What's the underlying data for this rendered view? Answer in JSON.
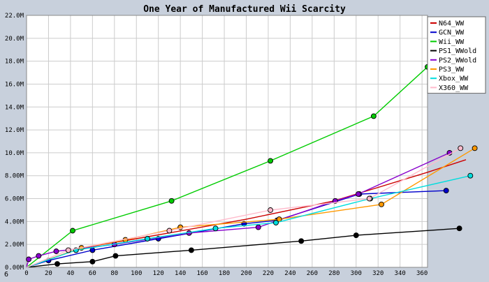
{
  "chart_data": {
    "type": "line",
    "title": "One Year of Manufactured Wii Scarcity",
    "xlabel": "",
    "ylabel": "",
    "xlim": [
      0,
      365
    ],
    "ylim": [
      0,
      22000000
    ],
    "x_ticks": [
      0,
      20,
      40,
      60,
      80,
      100,
      120,
      140,
      160,
      180,
      200,
      220,
      240,
      260,
      280,
      300,
      320,
      340,
      360
    ],
    "y_ticks": [
      0,
      2000000,
      4000000,
      6000000,
      8000000,
      10000000,
      12000000,
      14000000,
      16000000,
      18000000,
      20000000,
      22000000
    ],
    "y_tick_labels": [
      "0.00M",
      "2.00M",
      "4.00M",
      "6.00M",
      "8.00M",
      "10.0M",
      "12.0M",
      "14.0M",
      "16.0M",
      "18.0M",
      "20.0M",
      "22.0M"
    ],
    "corner_label": "6",
    "grid": true,
    "legend_position": "top-right",
    "series": [
      {
        "name": "N64_WW",
        "color": "#cc0000",
        "markers": false,
        "points": [
          [
            0,
            0
          ],
          [
            50,
            1700000
          ],
          [
            100,
            2500000
          ],
          [
            200,
            4200000
          ],
          [
            280,
            5800000
          ],
          [
            365,
            8300000
          ],
          [
            400,
            9400000
          ]
        ]
      },
      {
        "name": "GCN_WW",
        "color": "#0000cc",
        "markers": true,
        "points": [
          [
            0,
            0
          ],
          [
            20,
            600000
          ],
          [
            60,
            1500000
          ],
          [
            120,
            2500000
          ],
          [
            198,
            3800000
          ],
          [
            228,
            4100000
          ],
          [
            303,
            6400000
          ],
          [
            382,
            6700000
          ]
        ]
      },
      {
        "name": "Wii_WW",
        "color": "#00cc00",
        "markers": true,
        "points": [
          [
            0,
            0
          ],
          [
            42,
            3200000
          ],
          [
            132,
            5800000
          ],
          [
            222,
            9300000
          ],
          [
            316,
            13200000
          ],
          [
            365,
            17500000
          ],
          [
            372,
            18000000
          ]
        ]
      },
      {
        "name": "PS1_WWold",
        "color": "#000000",
        "markers": true,
        "points": [
          [
            0,
            0
          ],
          [
            28,
            300000
          ],
          [
            60,
            500000
          ],
          [
            81,
            1000000
          ],
          [
            150,
            1500000
          ],
          [
            250,
            2300000
          ],
          [
            300,
            2800000
          ],
          [
            394,
            3400000
          ]
        ]
      },
      {
        "name": "PS2_WWold",
        "color": "#8800cc",
        "markers": true,
        "points": [
          [
            0,
            0
          ],
          [
            2,
            700000
          ],
          [
            11,
            1000000
          ],
          [
            27,
            1400000
          ],
          [
            80,
            2000000
          ],
          [
            148,
            3000000
          ],
          [
            211,
            3500000
          ],
          [
            281,
            5800000
          ],
          [
            302,
            6400000
          ],
          [
            385,
            10000000
          ]
        ]
      },
      {
        "name": "PS3_WW",
        "color": "#ff9900",
        "markers": true,
        "points": [
          [
            0,
            0
          ],
          [
            50,
            1700000
          ],
          [
            90,
            2400000
          ],
          [
            140,
            3500000
          ],
          [
            230,
            4200000
          ],
          [
            323,
            5500000
          ],
          [
            408,
            10400000
          ]
        ]
      },
      {
        "name": "Xbox_WW",
        "color": "#00dddd",
        "markers": true,
        "points": [
          [
            0,
            0
          ],
          [
            45,
            1500000
          ],
          [
            110,
            2500000
          ],
          [
            172,
            3400000
          ],
          [
            227,
            3900000
          ],
          [
            313,
            6000000
          ],
          [
            404,
            8000000
          ]
        ]
      },
      {
        "name": "X360_WW",
        "color": "#ffbbcc",
        "markers": true,
        "points": [
          [
            0,
            0
          ],
          [
            38,
            1500000
          ],
          [
            130,
            3200000
          ],
          [
            222,
            5000000
          ],
          [
            312,
            6000000
          ],
          [
            395,
            10400000
          ]
        ]
      }
    ]
  }
}
